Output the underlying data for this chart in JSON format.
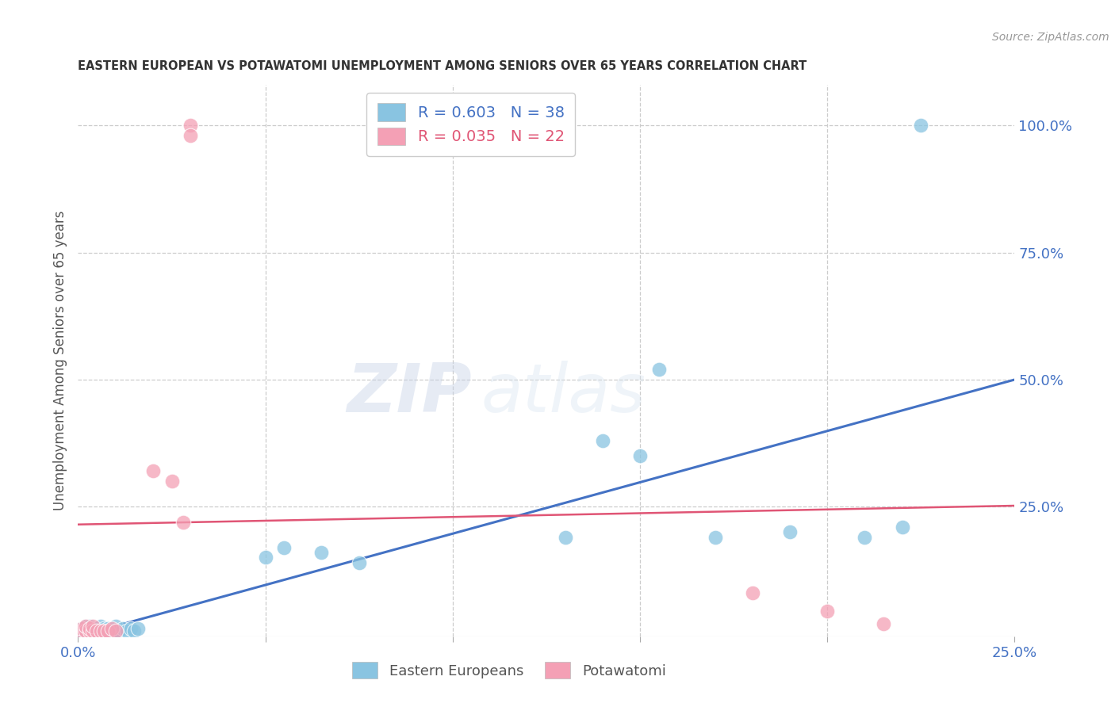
{
  "title": "EASTERN EUROPEAN VS POTAWATOMI UNEMPLOYMENT AMONG SENIORS OVER 65 YEARS CORRELATION CHART",
  "source": "Source: ZipAtlas.com",
  "ylabel": "Unemployment Among Seniors over 65 years",
  "xlim": [
    0.0,
    0.25
  ],
  "ylim": [
    -0.005,
    1.08
  ],
  "grid_color": "#cccccc",
  "background_color": "#ffffff",
  "blue_color": "#89c4e1",
  "blue_line_color": "#4472c4",
  "pink_color": "#f4a0b5",
  "pink_line_color": "#e05575",
  "legend_blue_R": "R = 0.603",
  "legend_blue_N": "N = 38",
  "legend_pink_R": "R = 0.035",
  "legend_pink_N": "N = 22",
  "legend_label_blue": "Eastern Europeans",
  "legend_label_pink": "Potawatomi",
  "blue_scatter_x": [
    0.001,
    0.001,
    0.002,
    0.002,
    0.003,
    0.003,
    0.003,
    0.004,
    0.004,
    0.005,
    0.005,
    0.006,
    0.006,
    0.007,
    0.007,
    0.008,
    0.009,
    0.01,
    0.01,
    0.011,
    0.012,
    0.013,
    0.014,
    0.015,
    0.016,
    0.05,
    0.055,
    0.065,
    0.075,
    0.13,
    0.14,
    0.15,
    0.155,
    0.17,
    0.19,
    0.21,
    0.22,
    0.225
  ],
  "blue_scatter_y": [
    0.005,
    0.01,
    0.005,
    0.015,
    0.005,
    0.01,
    0.015,
    0.005,
    0.01,
    0.005,
    0.01,
    0.005,
    0.015,
    0.005,
    0.01,
    0.01,
    0.005,
    0.005,
    0.015,
    0.005,
    0.01,
    0.005,
    0.01,
    0.005,
    0.01,
    0.15,
    0.17,
    0.16,
    0.14,
    0.19,
    0.38,
    0.35,
    0.52,
    0.19,
    0.2,
    0.19,
    0.21,
    1.0
  ],
  "pink_scatter_x": [
    0.001,
    0.001,
    0.002,
    0.002,
    0.003,
    0.003,
    0.004,
    0.004,
    0.005,
    0.006,
    0.007,
    0.008,
    0.009,
    0.01,
    0.02,
    0.025,
    0.028,
    0.03,
    0.03,
    0.18,
    0.2,
    0.215
  ],
  "pink_scatter_y": [
    0.005,
    0.01,
    0.005,
    0.015,
    0.005,
    0.01,
    0.005,
    0.015,
    0.005,
    0.005,
    0.005,
    0.005,
    0.01,
    0.005,
    0.32,
    0.3,
    0.22,
    1.0,
    0.98,
    0.08,
    0.045,
    0.02
  ],
  "blue_line_x0": 0.0,
  "blue_line_x1": 0.25,
  "blue_line_y0": -0.005,
  "blue_line_y1": 0.5,
  "pink_line_x0": 0.0,
  "pink_line_x1": 0.25,
  "pink_line_y0": 0.215,
  "pink_line_y1": 0.252
}
